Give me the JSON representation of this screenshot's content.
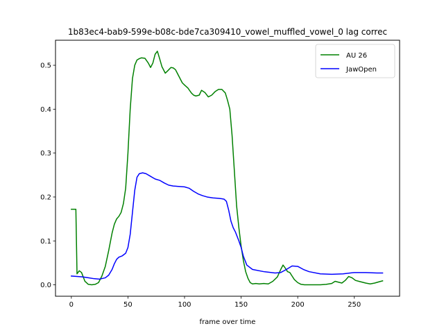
{
  "chart_data": {
    "type": "line",
    "title": "1b83ec4-bab9-599e-b08c-bde7ca309410_vowel_muffled_vowel_0  lag correc",
    "xlabel": "frame over time",
    "ylabel": "",
    "xlim": [
      -14,
      290
    ],
    "ylim": [
      -0.026,
      0.557
    ],
    "xticks": [
      0,
      50,
      100,
      150,
      200,
      250
    ],
    "yticks": [
      0.0,
      0.1,
      0.2,
      0.3,
      0.4,
      0.5
    ],
    "xtick_labels": [
      "0",
      "50",
      "100",
      "150",
      "200",
      "250"
    ],
    "ytick_labels": [
      "0.0",
      "0.1",
      "0.2",
      "0.3",
      "0.4",
      "0.5"
    ],
    "grid": false,
    "legend_position": "top-right",
    "series": [
      {
        "name": "AU 26",
        "color": "#008000",
        "x": [
          0,
          4,
          5,
          7,
          9,
          12,
          15,
          18,
          21,
          24,
          27,
          30,
          33,
          36,
          38,
          40,
          42,
          44,
          46,
          48,
          50,
          52,
          54,
          56,
          58,
          60,
          62,
          65,
          68,
          70,
          72,
          74,
          76,
          78,
          80,
          83,
          85,
          88,
          90,
          92,
          95,
          98,
          100,
          103,
          106,
          108,
          110,
          113,
          115,
          118,
          121,
          124,
          127,
          130,
          133,
          136,
          138,
          140,
          142,
          144,
          146,
          148,
          150,
          152,
          154,
          156,
          158,
          160,
          163,
          166,
          170,
          174,
          178,
          182,
          185,
          187,
          189,
          191,
          193,
          195,
          197,
          200,
          203,
          206,
          210,
          215,
          220,
          225,
          230,
          233,
          236,
          239,
          242,
          245,
          248,
          251,
          254,
          257,
          260,
          264,
          268,
          272,
          275
        ],
        "values": [
          0.172,
          0.172,
          0.025,
          0.032,
          0.028,
          0.008,
          0.001,
          0.0,
          0.001,
          0.005,
          0.02,
          0.042,
          0.078,
          0.118,
          0.138,
          0.15,
          0.156,
          0.165,
          0.185,
          0.22,
          0.3,
          0.4,
          0.47,
          0.5,
          0.512,
          0.515,
          0.517,
          0.516,
          0.505,
          0.495,
          0.505,
          0.525,
          0.532,
          0.515,
          0.497,
          0.482,
          0.487,
          0.495,
          0.494,
          0.49,
          0.475,
          0.46,
          0.455,
          0.448,
          0.437,
          0.432,
          0.43,
          0.432,
          0.443,
          0.438,
          0.428,
          0.432,
          0.44,
          0.445,
          0.445,
          0.437,
          0.42,
          0.4,
          0.34,
          0.26,
          0.18,
          0.13,
          0.088,
          0.055,
          0.03,
          0.015,
          0.005,
          0.002,
          0.003,
          0.002,
          0.003,
          0.002,
          0.008,
          0.018,
          0.035,
          0.045,
          0.038,
          0.03,
          0.028,
          0.02,
          0.012,
          0.005,
          0.001,
          0.0,
          0.0,
          0.0,
          0.0,
          0.001,
          0.003,
          0.008,
          0.006,
          0.004,
          0.01,
          0.019,
          0.016,
          0.01,
          0.008,
          0.006,
          0.004,
          0.002,
          0.004,
          0.007,
          0.009
        ]
      },
      {
        "name": "JawOpen",
        "color": "#0000ff",
        "x": [
          0,
          5,
          10,
          15,
          20,
          25,
          30,
          33,
          36,
          38,
          40,
          42,
          45,
          48,
          50,
          52,
          54,
          56,
          58,
          60,
          63,
          66,
          70,
          74,
          78,
          82,
          86,
          90,
          95,
          100,
          104,
          108,
          112,
          116,
          120,
          125,
          130,
          133,
          135,
          137,
          139,
          141,
          143,
          145,
          148,
          150,
          152,
          155,
          160,
          170,
          180,
          185,
          190,
          195,
          200,
          205,
          210,
          220,
          230,
          240,
          250,
          260,
          270,
          275
        ],
        "values": [
          0.02,
          0.019,
          0.018,
          0.016,
          0.014,
          0.013,
          0.016,
          0.022,
          0.035,
          0.048,
          0.058,
          0.063,
          0.066,
          0.072,
          0.085,
          0.115,
          0.165,
          0.215,
          0.245,
          0.253,
          0.255,
          0.253,
          0.247,
          0.241,
          0.238,
          0.232,
          0.227,
          0.225,
          0.224,
          0.223,
          0.22,
          0.213,
          0.207,
          0.203,
          0.2,
          0.198,
          0.197,
          0.196,
          0.195,
          0.19,
          0.17,
          0.145,
          0.13,
          0.12,
          0.1,
          0.085,
          0.065,
          0.045,
          0.035,
          0.03,
          0.027,
          0.028,
          0.035,
          0.043,
          0.042,
          0.035,
          0.03,
          0.025,
          0.024,
          0.025,
          0.028,
          0.028,
          0.027,
          0.027
        ]
      }
    ]
  }
}
